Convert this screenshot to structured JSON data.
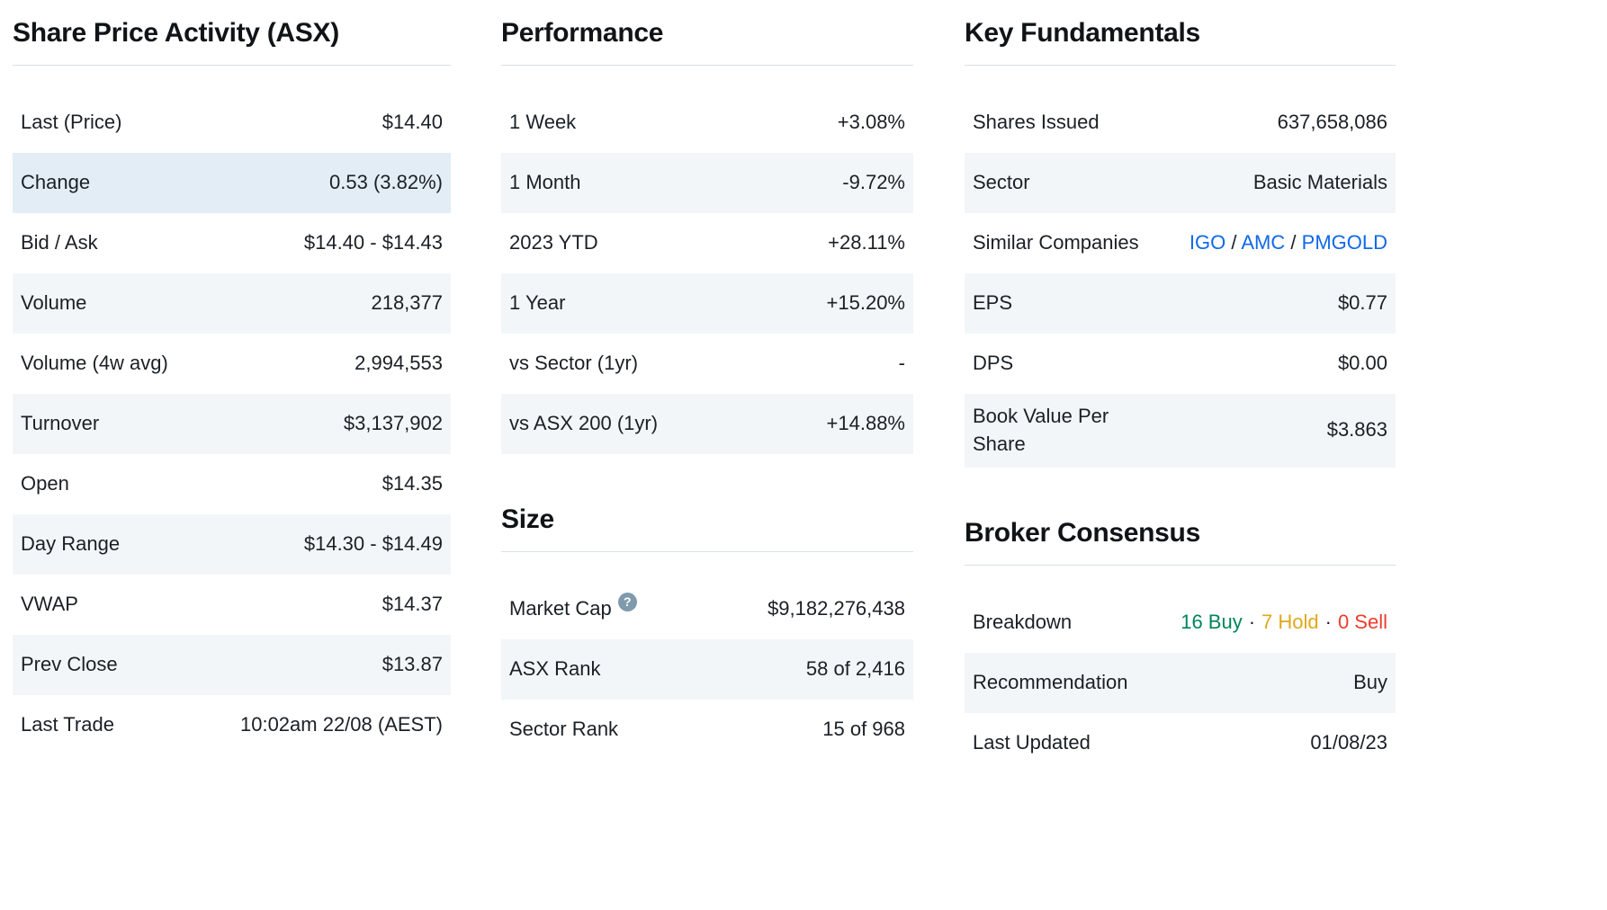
{
  "share_price": {
    "title": "Share Price Activity (ASX)",
    "rows": [
      {
        "label": "Last (Price)",
        "value": "$14.40"
      },
      {
        "label": "Change",
        "value": "0.53 (3.82%)"
      },
      {
        "label": "Bid / Ask",
        "value": "$14.40 - $14.43"
      },
      {
        "label": "Volume",
        "value": "218,377"
      },
      {
        "label": "Volume (4w avg)",
        "value": "2,994,553"
      },
      {
        "label": "Turnover",
        "value": "$3,137,902"
      },
      {
        "label": "Open",
        "value": "$14.35"
      },
      {
        "label": "Day Range",
        "value": "$14.30 - $14.49"
      },
      {
        "label": "VWAP",
        "value": "$14.37"
      },
      {
        "label": "Prev Close",
        "value": "$13.87"
      },
      {
        "label": "Last Trade",
        "value": "10:02am 22/08 (AEST)"
      }
    ]
  },
  "performance": {
    "title": "Performance",
    "rows": [
      {
        "label": "1 Week",
        "value": "+3.08%"
      },
      {
        "label": "1 Month",
        "value": "-9.72%"
      },
      {
        "label": "2023 YTD",
        "value": "+28.11%"
      },
      {
        "label": "1 Year",
        "value": "+15.20%"
      },
      {
        "label": "vs Sector (1yr)",
        "value": "-"
      },
      {
        "label": "vs ASX 200 (1yr)",
        "value": "+14.88%"
      }
    ]
  },
  "size": {
    "title": "Size",
    "help_icon": "?",
    "rows": [
      {
        "label": "Market Cap",
        "value": "$9,182,276,438"
      },
      {
        "label": "ASX Rank",
        "value": "58 of 2,416"
      },
      {
        "label": "Sector Rank",
        "value": "15 of 968"
      }
    ]
  },
  "fundamentals": {
    "title": "Key Fundamentals",
    "separator": "/",
    "similar_links": [
      "IGO",
      "AMC",
      "PMGOLD"
    ],
    "rows": [
      {
        "label": "Shares Issued",
        "value": "637,658,086"
      },
      {
        "label": "Sector",
        "value": "Basic Materials"
      },
      {
        "label": "Similar Companies",
        "value": ""
      },
      {
        "label": "EPS",
        "value": "$0.77"
      },
      {
        "label": "DPS",
        "value": "$0.00"
      },
      {
        "label": "Book Value Per Share",
        "value": "$3.863"
      }
    ]
  },
  "broker": {
    "title": "Broker Consensus",
    "breakdown": {
      "buy": "16 Buy",
      "hold": "7 Hold",
      "sell": "0 Sell",
      "dot": "·"
    },
    "rows": [
      {
        "label": "Breakdown",
        "value": ""
      },
      {
        "label": "Recommendation",
        "value": "Buy"
      },
      {
        "label": "Last Updated",
        "value": "01/08/23"
      }
    ]
  },
  "colors": {
    "positive": "#00855b",
    "negative": "#f04f31",
    "sell_red": "#ee3b2c",
    "hold_gold": "#dfa818",
    "link_blue": "#1168e8",
    "row_alt_bg": "#f2f6f9",
    "highlight_bg": "#e2edf5"
  }
}
